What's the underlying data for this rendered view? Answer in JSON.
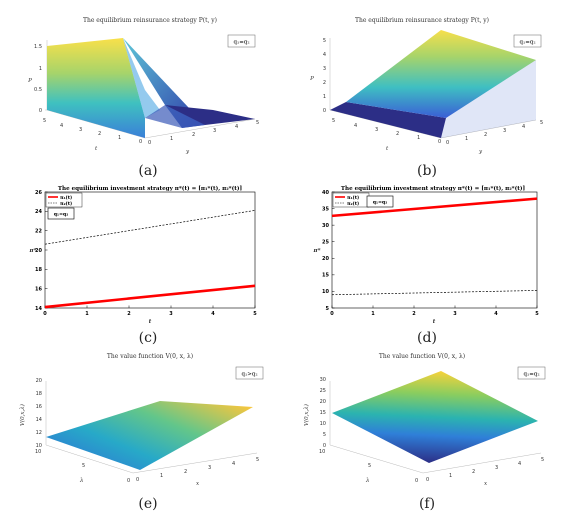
{
  "captions": [
    "(a)",
    "(b)",
    "(c)",
    "(d)",
    "(e)",
    "(f)"
  ],
  "chart_data": [
    {
      "id": "a",
      "type": "surface3d",
      "title": "The equilibrium reinsurance strategy P(t, y)",
      "legend": "q₁=q₂",
      "zlabel": "P",
      "xlabel": "t",
      "ylabel": "y",
      "t_ticks": [
        "0",
        "1",
        "2",
        "3",
        "4",
        "5"
      ],
      "y_ticks": [
        "0",
        "1",
        "2",
        "3",
        "4",
        "5"
      ],
      "z_ticks": [
        "0",
        "0.5",
        "1",
        "1.5"
      ],
      "z_range": [
        0,
        1.5
      ],
      "t_range": [
        0,
        5
      ],
      "y_range": [
        0,
        5
      ],
      "shape": "ridge: z = 1.5 at y = 0 decreasing linearly to 0 at y ≈ 2.3, flat 0 beyond"
    },
    {
      "id": "b",
      "type": "surface3d",
      "title": "The equilibrium reinsurance strategy P(t, y)",
      "legend": "q₁=q₂",
      "zlabel": "P",
      "xlabel": "t",
      "ylabel": "y",
      "t_ticks": [
        "0",
        "1",
        "2",
        "3",
        "4",
        "5"
      ],
      "y_ticks": [
        "0",
        "1",
        "2",
        "3",
        "4",
        "5"
      ],
      "z_ticks": [
        "0",
        "1",
        "2",
        "3",
        "4",
        "5"
      ],
      "z_range": [
        0,
        5
      ],
      "t_range": [
        0,
        5
      ],
      "y_range": [
        0,
        5
      ],
      "shape": "z = 0 for y < 1, rising linearly to 5 at y = 5"
    },
    {
      "id": "c",
      "type": "line",
      "title": "The equilibrium investment strategy π*(t) = [π₁*(t), π₂*(t)]",
      "legend_lines": [
        "π₁(t)",
        "π₂(t)"
      ],
      "legend_box": "q₁=q₂",
      "xlabel": "t",
      "ylabel": "π*",
      "xlim": [
        0,
        5
      ],
      "ylim": [
        14,
        26
      ],
      "x_ticks": [
        "0",
        "1",
        "2",
        "3",
        "4",
        "5"
      ],
      "y_ticks": [
        "14",
        "16",
        "18",
        "20",
        "22",
        "24",
        "26"
      ],
      "series": [
        {
          "name": "π₁(t)",
          "x": [
            0,
            5
          ],
          "y": [
            14.1,
            16.3
          ],
          "color": "#ff0000",
          "style": "solid"
        },
        {
          "name": "π₂(t)",
          "x": [
            0,
            5
          ],
          "y": [
            20.6,
            24.1
          ],
          "color": "#000000",
          "style": "dashed"
        }
      ]
    },
    {
      "id": "d",
      "type": "line",
      "title": "The equilibrium investment strategy π*(t) = [π₁*(t), π₂*(t)]",
      "legend_lines": [
        "π₁(t)",
        "π₂(t)"
      ],
      "legend_box": "q₁=q₂",
      "xlabel": "t",
      "ylabel": "π*",
      "xlim": [
        0,
        5
      ],
      "ylim": [
        5,
        40
      ],
      "x_ticks": [
        "0",
        "1",
        "2",
        "3",
        "4",
        "5"
      ],
      "y_ticks": [
        "5",
        "10",
        "15",
        "20",
        "25",
        "30",
        "35",
        "40"
      ],
      "series": [
        {
          "name": "π₁(t)",
          "x": [
            0,
            5
          ],
          "y": [
            32.8,
            38.0
          ],
          "color": "#ff0000",
          "style": "solid"
        },
        {
          "name": "π₂(t)",
          "x": [
            0,
            5
          ],
          "y": [
            9.0,
            10.3
          ],
          "color": "#000000",
          "style": "dashed"
        }
      ]
    },
    {
      "id": "e",
      "type": "surface3d",
      "title": "The value function V(0, x, λ)",
      "legend": "q₁>q₂",
      "zlabel": "V(0,x,λ)",
      "xlabel": "x",
      "ylabel": "λ",
      "x_ticks": [
        "0",
        "1",
        "2",
        "3",
        "4",
        "5"
      ],
      "lambda_ticks": [
        "0",
        "5",
        "10"
      ],
      "z_ticks": [
        "10",
        "12",
        "14",
        "16",
        "18",
        "20"
      ],
      "z_range": [
        10,
        20
      ]
    },
    {
      "id": "f",
      "type": "surface3d",
      "title": "The value function V(0, x, λ)",
      "legend": "q₁=q₂",
      "zlabel": "V(0,x,λ)",
      "xlabel": "x",
      "ylabel": "λ",
      "x_ticks": [
        "0",
        "1",
        "2",
        "3",
        "4",
        "5"
      ],
      "lambda_ticks": [
        "0",
        "5",
        "10"
      ],
      "z_ticks": [
        "0",
        "5",
        "10",
        "15",
        "20",
        "25",
        "30"
      ],
      "z_range": [
        0,
        30
      ]
    }
  ]
}
